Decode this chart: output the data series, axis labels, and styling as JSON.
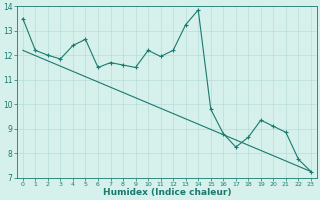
{
  "xlabel": "Humidex (Indice chaleur)",
  "ylabel": "",
  "line1_x": [
    0,
    1,
    2,
    3,
    4,
    5,
    6,
    7,
    8,
    9,
    10,
    11,
    12,
    13,
    14,
    15,
    16,
    17,
    18,
    19,
    20,
    21,
    22,
    23
  ],
  "line1_y": [
    13.5,
    12.2,
    12.0,
    11.85,
    12.4,
    12.65,
    11.5,
    11.7,
    11.6,
    11.5,
    12.2,
    11.95,
    12.2,
    13.25,
    13.85,
    9.8,
    8.8,
    8.25,
    8.65,
    9.35,
    9.1,
    8.85,
    7.75,
    7.25
  ],
  "line2_x": [
    0,
    23
  ],
  "line2_y": [
    12.2,
    7.25
  ],
  "color": "#1a7a6e",
  "bg_color": "#d6f0ec",
  "grid_color": "#b8ddd8",
  "xlim": [
    -0.5,
    23.5
  ],
  "ylim": [
    7,
    14
  ],
  "xticks": [
    0,
    1,
    2,
    3,
    4,
    5,
    6,
    7,
    8,
    9,
    10,
    11,
    12,
    13,
    14,
    15,
    16,
    17,
    18,
    19,
    20,
    21,
    22,
    23
  ],
  "yticks": [
    7,
    8,
    9,
    10,
    11,
    12,
    13,
    14
  ],
  "marker": "+"
}
